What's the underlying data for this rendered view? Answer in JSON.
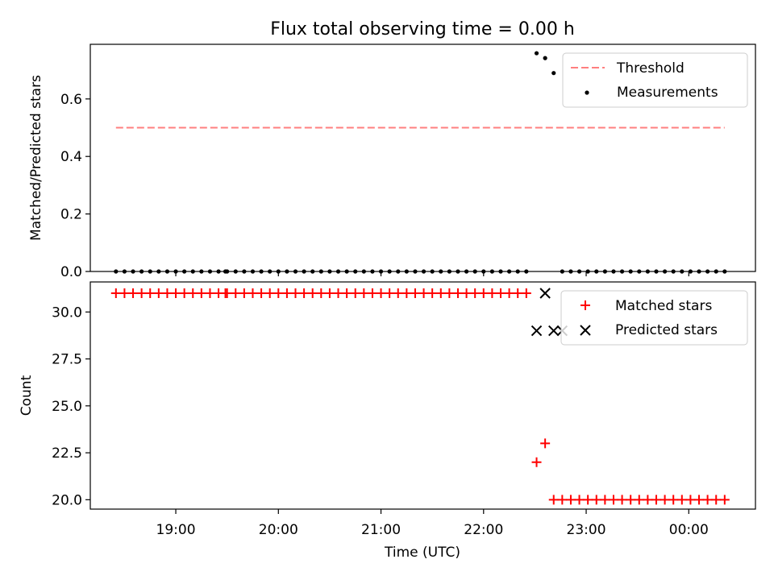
{
  "title": "Flux total observing time = 0.00 h",
  "xlabel": "Time (UTC)",
  "xticks": [
    {
      "t": 19.0,
      "label": "19:00"
    },
    {
      "t": 20.0,
      "label": "20:00"
    },
    {
      "t": 21.0,
      "label": "21:00"
    },
    {
      "t": 22.0,
      "label": "22:00"
    },
    {
      "t": 23.0,
      "label": "23:00"
    },
    {
      "t": 24.0,
      "label": "00:00"
    }
  ],
  "chart_data": [
    {
      "type": "scatter",
      "ylabel": "Matched/Predicted stars",
      "xlim": [
        "18:10",
        "00:39"
      ],
      "ylim": [
        0,
        0.79
      ],
      "yticks": [
        0.0,
        0.2,
        0.4,
        0.6
      ],
      "yticklabels": [
        "0.0",
        "0.2",
        "0.4",
        "0.6"
      ],
      "legend_position": "top-right",
      "threshold": {
        "name": "Threshold",
        "value": 0.5,
        "x_range": [
          "18:25",
          "00:21"
        ],
        "color": "#ff7f7f"
      },
      "series": [
        {
          "name": "Measurements",
          "color": "#000000",
          "points": [
            [
              "18:25",
              0
            ],
            [
              "18:30",
              0
            ],
            [
              "18:35",
              0
            ],
            [
              "18:40",
              0
            ],
            [
              "18:45",
              0
            ],
            [
              "18:50",
              0
            ],
            [
              "18:55",
              0
            ],
            [
              "19:00",
              0
            ],
            [
              "19:05",
              0
            ],
            [
              "19:10",
              0
            ],
            [
              "19:15",
              0
            ],
            [
              "19:20",
              0
            ],
            [
              "19:25",
              0
            ],
            [
              "19:29",
              0
            ],
            [
              "19:30",
              0
            ],
            [
              "19:35",
              0
            ],
            [
              "19:40",
              0
            ],
            [
              "19:45",
              0
            ],
            [
              "19:50",
              0
            ],
            [
              "19:55",
              0
            ],
            [
              "20:00",
              0
            ],
            [
              "20:05",
              0
            ],
            [
              "20:10",
              0
            ],
            [
              "20:15",
              0
            ],
            [
              "20:20",
              0
            ],
            [
              "20:25",
              0
            ],
            [
              "20:30",
              0
            ],
            [
              "20:35",
              0
            ],
            [
              "20:40",
              0
            ],
            [
              "20:45",
              0
            ],
            [
              "20:50",
              0
            ],
            [
              "20:55",
              0
            ],
            [
              "21:00",
              0
            ],
            [
              "21:05",
              0
            ],
            [
              "21:10",
              0
            ],
            [
              "21:15",
              0
            ],
            [
              "21:20",
              0
            ],
            [
              "21:25",
              0
            ],
            [
              "21:30",
              0
            ],
            [
              "21:35",
              0
            ],
            [
              "21:40",
              0
            ],
            [
              "21:45",
              0
            ],
            [
              "21:50",
              0
            ],
            [
              "21:55",
              0
            ],
            [
              "22:00",
              0
            ],
            [
              "22:05",
              0
            ],
            [
              "22:10",
              0
            ],
            [
              "22:15",
              0
            ],
            [
              "22:20",
              0
            ],
            [
              "22:25",
              0
            ],
            [
              "22:31",
              0.759
            ],
            [
              "22:36",
              0.742
            ],
            [
              "22:41",
              0.69
            ],
            [
              "22:46",
              0
            ],
            [
              "22:51",
              0
            ],
            [
              "22:56",
              0
            ],
            [
              "23:01",
              0
            ],
            [
              "23:06",
              0
            ],
            [
              "23:11",
              0
            ],
            [
              "23:16",
              0
            ],
            [
              "23:21",
              0
            ],
            [
              "23:26",
              0
            ],
            [
              "23:31",
              0
            ],
            [
              "23:36",
              0
            ],
            [
              "23:41",
              0
            ],
            [
              "23:46",
              0
            ],
            [
              "23:51",
              0
            ],
            [
              "23:56",
              0
            ],
            [
              "00:01",
              0
            ],
            [
              "00:06",
              0
            ],
            [
              "00:11",
              0
            ],
            [
              "00:16",
              0
            ],
            [
              "00:21",
              0
            ]
          ]
        }
      ]
    },
    {
      "type": "scatter",
      "ylabel": "Count",
      "xlim": [
        "18:10",
        "00:39"
      ],
      "ylim": [
        19.5,
        31.6
      ],
      "yticks": [
        20.0,
        22.5,
        25.0,
        27.5,
        30.0
      ],
      "yticklabels": [
        "20.0",
        "22.5",
        "25.0",
        "27.5",
        "30.0"
      ],
      "legend_position": "top-right",
      "series": [
        {
          "name": "Matched stars",
          "marker": "+",
          "color": "#ff0000",
          "points": [
            [
              "18:25",
              31
            ],
            [
              "18:30",
              31
            ],
            [
              "18:35",
              31
            ],
            [
              "18:40",
              31
            ],
            [
              "18:45",
              31
            ],
            [
              "18:50",
              31
            ],
            [
              "18:55",
              31
            ],
            [
              "19:00",
              31
            ],
            [
              "19:05",
              31
            ],
            [
              "19:10",
              31
            ],
            [
              "19:15",
              31
            ],
            [
              "19:20",
              31
            ],
            [
              "19:25",
              31
            ],
            [
              "19:29",
              31
            ],
            [
              "19:30",
              31
            ],
            [
              "19:35",
              31
            ],
            [
              "19:40",
              31
            ],
            [
              "19:45",
              31
            ],
            [
              "19:50",
              31
            ],
            [
              "19:55",
              31
            ],
            [
              "20:00",
              31
            ],
            [
              "20:05",
              31
            ],
            [
              "20:10",
              31
            ],
            [
              "20:15",
              31
            ],
            [
              "20:20",
              31
            ],
            [
              "20:25",
              31
            ],
            [
              "20:30",
              31
            ],
            [
              "20:35",
              31
            ],
            [
              "20:40",
              31
            ],
            [
              "20:45",
              31
            ],
            [
              "20:50",
              31
            ],
            [
              "20:55",
              31
            ],
            [
              "21:00",
              31
            ],
            [
              "21:05",
              31
            ],
            [
              "21:10",
              31
            ],
            [
              "21:15",
              31
            ],
            [
              "21:20",
              31
            ],
            [
              "21:25",
              31
            ],
            [
              "21:30",
              31
            ],
            [
              "21:35",
              31
            ],
            [
              "21:40",
              31
            ],
            [
              "21:45",
              31
            ],
            [
              "21:50",
              31
            ],
            [
              "21:55",
              31
            ],
            [
              "22:00",
              31
            ],
            [
              "22:05",
              31
            ],
            [
              "22:10",
              31
            ],
            [
              "22:15",
              31
            ],
            [
              "22:20",
              31
            ],
            [
              "22:25",
              31
            ],
            [
              "22:31",
              22
            ],
            [
              "22:36",
              23
            ],
            [
              "22:41",
              20
            ],
            [
              "22:46",
              20
            ],
            [
              "22:51",
              20
            ],
            [
              "22:56",
              20
            ],
            [
              "23:01",
              20
            ],
            [
              "23:06",
              20
            ],
            [
              "23:11",
              20
            ],
            [
              "23:16",
              20
            ],
            [
              "23:21",
              20
            ],
            [
              "23:26",
              20
            ],
            [
              "23:31",
              20
            ],
            [
              "23:36",
              20
            ],
            [
              "23:41",
              20
            ],
            [
              "23:46",
              20
            ],
            [
              "23:51",
              20
            ],
            [
              "23:56",
              20
            ],
            [
              "00:01",
              20
            ],
            [
              "00:06",
              20
            ],
            [
              "00:11",
              20
            ],
            [
              "00:16",
              20
            ],
            [
              "00:21",
              20
            ]
          ]
        },
        {
          "name": "Predicted stars",
          "marker": "x",
          "color": "#000000",
          "points": [
            [
              "22:31",
              29
            ],
            [
              "22:36",
              31
            ],
            [
              "22:41",
              29
            ],
            [
              "22:46",
              29
            ]
          ]
        }
      ]
    }
  ]
}
